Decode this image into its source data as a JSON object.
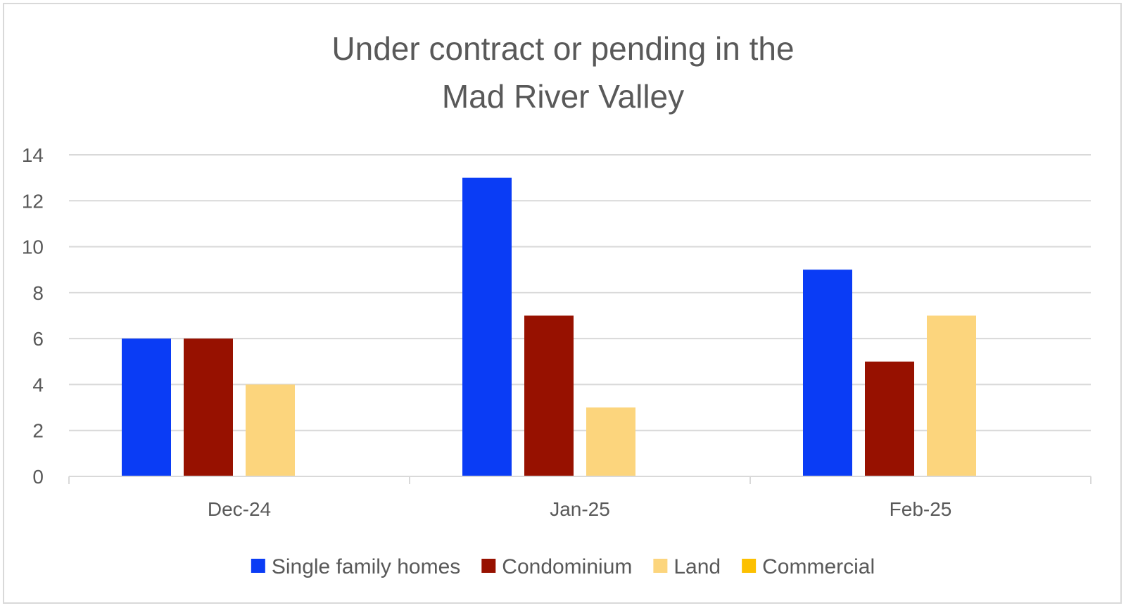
{
  "chart_data": {
    "type": "bar",
    "title_lines": [
      "Under contract or pending in the",
      "Mad River Valley"
    ],
    "xlabel": "",
    "ylabel": "",
    "categories": [
      "Dec-24",
      "Jan-25",
      "Feb-25"
    ],
    "series": [
      {
        "name": "Single family homes",
        "color": "#0a3cf5",
        "values": [
          6,
          13,
          9
        ]
      },
      {
        "name": "Condominium",
        "color": "#971100",
        "values": [
          6,
          7,
          5
        ]
      },
      {
        "name": "Land",
        "color": "#fcd57d",
        "values": [
          4,
          3,
          7
        ]
      },
      {
        "name": "Commercial",
        "color": "#fcc000",
        "values": [
          0,
          0,
          0
        ]
      }
    ],
    "ylim": [
      0,
      14
    ],
    "yticks": [
      0,
      2,
      4,
      6,
      8,
      10,
      12,
      14
    ],
    "grid": true,
    "legend": "bottom"
  }
}
